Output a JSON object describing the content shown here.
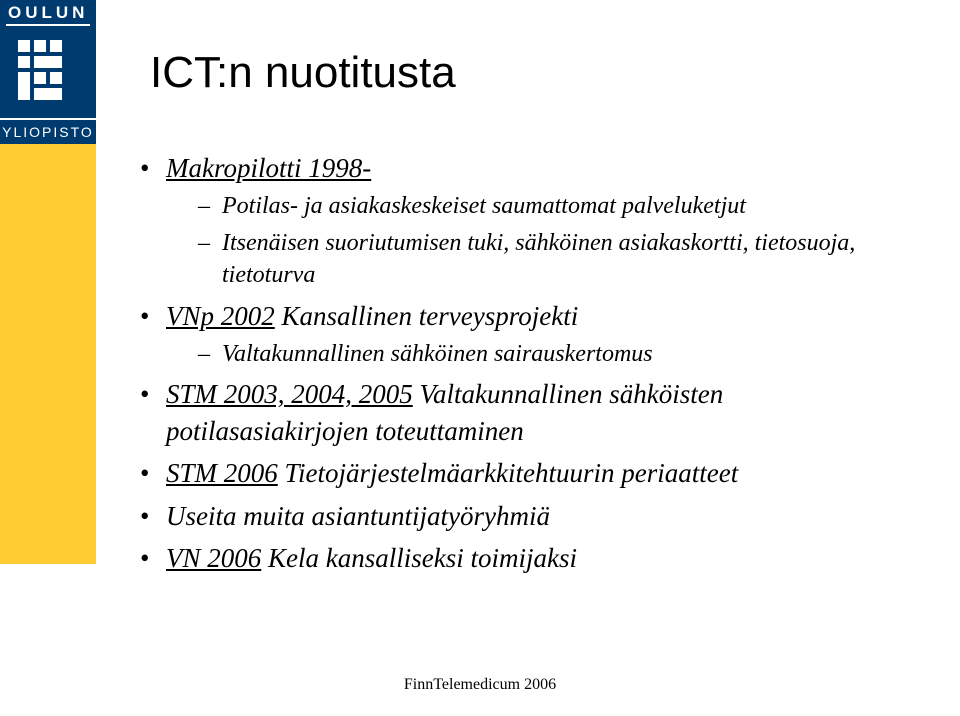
{
  "logo": {
    "top_text": "OULUN",
    "bottom_text": "YLIOPISTO",
    "bg_color": "#003b6f",
    "fg_color": "#ffffff"
  },
  "sidebar_color": "#ffcc33",
  "title": "ICT:n nuotitusta",
  "bullets": [
    {
      "text_pre": "",
      "link": "Makropilotti 1998-",
      "text_post": "",
      "sub": [
        "Potilas- ja asiakaskeskeiset saumattomat palveluketjut",
        "Itsenäisen suoriutumisen tuki, sähköinen asiakaskortti, tietosuoja, tietoturva"
      ]
    },
    {
      "text_pre": "",
      "link": "VNp 2002",
      "text_post": " Kansallinen terveysprojekti",
      "sub": [
        "Valtakunnallinen sähköinen sairauskertomus"
      ]
    },
    {
      "text_pre": "",
      "link": "STM 2003, 2004, 2005",
      "text_post": " Valtakunnallinen sähköisten potilasasiakirjojen toteuttaminen",
      "sub": []
    },
    {
      "text_pre": "",
      "link": "STM 2006",
      "text_post": " Tietojärjestelmäarkkitehtuurin periaatteet",
      "sub": []
    },
    {
      "text_pre": "Useita muita asiantuntijatyöryhmiä",
      "link": "",
      "text_post": "",
      "sub": []
    },
    {
      "text_pre": "",
      "link": "VN 2006",
      "text_post": " Kela kansalliseksi toimijaksi",
      "sub": []
    }
  ],
  "footer": "FinnTelemedicum 2006",
  "fonts": {
    "title_size": 44,
    "bullet_size": 27,
    "sub_size": 24,
    "footer_size": 16
  }
}
